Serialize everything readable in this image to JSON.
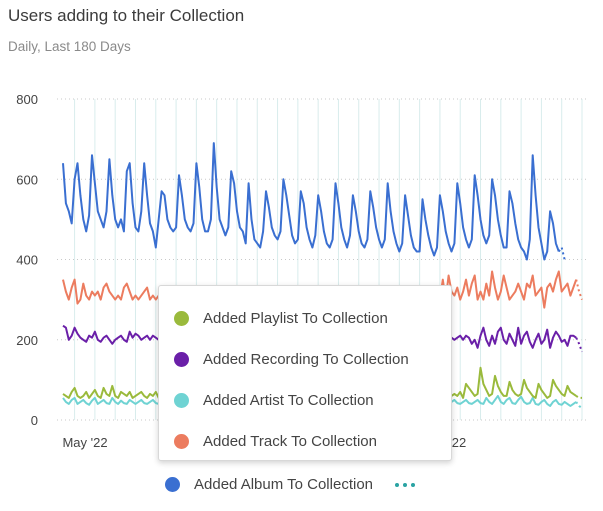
{
  "header": {
    "title": "Users adding to their Collection",
    "subtitle": "Daily, Last 180 Days"
  },
  "legend": {
    "popup_items": [
      {
        "label": "Added Playlist To Collection",
        "color": "#9aba3c"
      },
      {
        "label": "Added Recording To Collection",
        "color": "#6a1fa8"
      },
      {
        "label": "Added Artist To Collection",
        "color": "#6fd3d3"
      },
      {
        "label": "Added Track To Collection",
        "color": "#ec7c5f"
      }
    ],
    "bottom_item": {
      "label": "Added Album To Collection",
      "color": "#3a6fd1"
    },
    "more_icon": "ellipsis-icon"
  },
  "chart_data": {
    "type": "line",
    "title": "Users adding to their Collection",
    "subtitle": "Daily, Last 180 Days",
    "ylim": [
      0,
      800
    ],
    "yticks": [
      0,
      200,
      400,
      600,
      800
    ],
    "xtick_labels": [
      "May '22",
      "22"
    ],
    "x_days": 180,
    "grid": true,
    "series": [
      {
        "name": "Added Album To Collection",
        "color": "#3a6fd1",
        "values": [
          640,
          540,
          520,
          490,
          600,
          640,
          560,
          500,
          470,
          510,
          660,
          590,
          520,
          500,
          480,
          520,
          650,
          560,
          500,
          480,
          500,
          470,
          620,
          640,
          540,
          480,
          470,
          520,
          640,
          560,
          490,
          470,
          430,
          500,
          570,
          560,
          500,
          480,
          470,
          480,
          610,
          560,
          500,
          480,
          470,
          490,
          640,
          580,
          500,
          470,
          470,
          500,
          690,
          580,
          500,
          480,
          460,
          480,
          620,
          590,
          520,
          480,
          470,
          440,
          590,
          500,
          450,
          440,
          430,
          470,
          570,
          530,
          480,
          460,
          450,
          470,
          600,
          560,
          510,
          460,
          440,
          450,
          570,
          540,
          480,
          450,
          430,
          460,
          560,
          520,
          470,
          440,
          430,
          450,
          590,
          540,
          480,
          450,
          430,
          460,
          560,
          520,
          470,
          440,
          430,
          450,
          570,
          530,
          480,
          450,
          430,
          450,
          590,
          520,
          470,
          440,
          420,
          440,
          560,
          510,
          460,
          430,
          420,
          420,
          550,
          500,
          460,
          430,
          410,
          430,
          560,
          520,
          470,
          440,
          420,
          440,
          590,
          540,
          480,
          450,
          430,
          450,
          610,
          560,
          500,
          460,
          440,
          460,
          600,
          560,
          500,
          460,
          430,
          430,
          570,
          540,
          490,
          450,
          430,
          420,
          400,
          450,
          660,
          560,
          480,
          440,
          400,
          420,
          520,
          490,
          440,
          420,
          430,
          400
        ]
      },
      {
        "name": "Added Track To Collection",
        "color": "#ec7c5f",
        "values": [
          350,
          320,
          300,
          330,
          350,
          290,
          300,
          340,
          310,
          300,
          320,
          310,
          320,
          300,
          330,
          340,
          320,
          310,
          300,
          310,
          300,
          330,
          340,
          320,
          300,
          310,
          300,
          310,
          320,
          330,
          300,
          310,
          300,
          310,
          320,
          300,
          310,
          300,
          310,
          320,
          310,
          300,
          310,
          300,
          310,
          310,
          300,
          310,
          310,
          300,
          310,
          310,
          300,
          310,
          310,
          300,
          310,
          310,
          300,
          310,
          310,
          300,
          310,
          310,
          300,
          310,
          310,
          300,
          310,
          310,
          300,
          310,
          310,
          300,
          310,
          310,
          300,
          310,
          310,
          300,
          310,
          310,
          300,
          310,
          310,
          300,
          310,
          310,
          300,
          310,
          310,
          300,
          310,
          310,
          300,
          310,
          310,
          300,
          310,
          310,
          300,
          310,
          310,
          300,
          310,
          310,
          300,
          310,
          310,
          300,
          310,
          310,
          300,
          310,
          310,
          300,
          310,
          310,
          300,
          310,
          310,
          300,
          310,
          310,
          300,
          310,
          310,
          300,
          310,
          310,
          300,
          350,
          300,
          360,
          320,
          310,
          330,
          300,
          320,
          350,
          310,
          340,
          360,
          300,
          320,
          300,
          340,
          310,
          370,
          330,
          300,
          320,
          360,
          330,
          300,
          310,
          320,
          340,
          320,
          300,
          340,
          330,
          360,
          310,
          320,
          330,
          280,
          330,
          340,
          320,
          350,
          370,
          320,
          330,
          340,
          310,
          330,
          350,
          320,
          300
        ]
      },
      {
        "name": "Added Recording To Collection",
        "color": "#6a1fa8",
        "values": [
          235,
          230,
          200,
          210,
          230,
          215,
          205,
          200,
          195,
          210,
          205,
          220,
          200,
          195,
          205,
          210,
          200,
          190,
          200,
          205,
          210,
          200,
          195,
          220,
          205,
          215,
          210,
          200,
          205,
          210,
          200,
          210,
          205,
          200,
          205,
          210,
          200,
          210,
          205,
          200,
          205,
          210,
          200,
          210,
          205,
          200,
          205,
          210,
          200,
          210,
          205,
          200,
          205,
          210,
          200,
          210,
          205,
          200,
          205,
          210,
          200,
          210,
          205,
          200,
          205,
          210,
          200,
          210,
          205,
          200,
          205,
          210,
          200,
          210,
          205,
          200,
          205,
          210,
          200,
          210,
          205,
          200,
          205,
          210,
          200,
          210,
          205,
          200,
          205,
          210,
          200,
          210,
          205,
          200,
          205,
          210,
          200,
          210,
          205,
          200,
          205,
          210,
          200,
          210,
          205,
          200,
          205,
          210,
          200,
          210,
          205,
          200,
          205,
          210,
          200,
          210,
          205,
          200,
          205,
          210,
          200,
          210,
          205,
          200,
          205,
          210,
          200,
          210,
          205,
          200,
          205,
          210,
          200,
          210,
          205,
          200,
          205,
          210,
          200,
          210,
          205,
          190,
          200,
          180,
          210,
          230,
          200,
          185,
          210,
          190,
          220,
          230,
          200,
          190,
          215,
          200,
          185,
          230,
          190,
          210,
          220,
          195,
          180,
          200,
          215,
          190,
          200,
          225,
          180,
          205,
          220,
          210,
          195,
          200,
          185,
          210,
          210,
          205,
          190,
          170
        ]
      },
      {
        "name": "Added Playlist To Collection",
        "color": "#9aba3c",
        "values": [
          65,
          60,
          55,
          70,
          80,
          60,
          55,
          60,
          70,
          55,
          65,
          75,
          60,
          55,
          80,
          65,
          60,
          85,
          60,
          55,
          70,
          65,
          60,
          70,
          55,
          60,
          65,
          70,
          60,
          55,
          65,
          60,
          70,
          55,
          60,
          65,
          60,
          70,
          55,
          60,
          65,
          60,
          70,
          55,
          60,
          65,
          60,
          70,
          55,
          60,
          65,
          60,
          70,
          55,
          60,
          65,
          60,
          70,
          55,
          60,
          65,
          60,
          70,
          55,
          60,
          65,
          60,
          70,
          55,
          60,
          65,
          60,
          70,
          55,
          60,
          65,
          60,
          70,
          55,
          60,
          65,
          60,
          70,
          55,
          60,
          65,
          60,
          70,
          55,
          60,
          65,
          60,
          70,
          55,
          60,
          65,
          60,
          70,
          55,
          60,
          65,
          60,
          70,
          55,
          60,
          65,
          60,
          70,
          55,
          60,
          65,
          60,
          70,
          55,
          60,
          65,
          60,
          70,
          55,
          60,
          65,
          60,
          70,
          55,
          60,
          65,
          60,
          70,
          55,
          60,
          65,
          60,
          70,
          55,
          60,
          65,
          60,
          70,
          55,
          90,
          80,
          70,
          60,
          65,
          130,
          90,
          75,
          60,
          65,
          110,
          85,
          70,
          60,
          60,
          95,
          75,
          65,
          60,
          65,
          100,
          80,
          70,
          60,
          55,
          90,
          75,
          65,
          55,
          60,
          100,
          85,
          75,
          65,
          60,
          85,
          70,
          65,
          60,
          55,
          55
        ]
      },
      {
        "name": "Added Artist To Collection",
        "color": "#6fd3d3",
        "values": [
          55,
          45,
          40,
          50,
          55,
          40,
          45,
          50,
          42,
          38,
          48,
          55,
          40,
          45,
          50,
          42,
          40,
          55,
          45,
          40,
          48,
          42,
          40,
          50,
          45,
          40,
          45,
          50,
          42,
          40,
          45,
          50,
          42,
          40,
          45,
          50,
          42,
          40,
          45,
          50,
          42,
          40,
          45,
          50,
          42,
          40,
          45,
          50,
          42,
          40,
          45,
          50,
          42,
          40,
          45,
          50,
          42,
          40,
          45,
          50,
          42,
          40,
          45,
          50,
          42,
          40,
          45,
          50,
          42,
          40,
          45,
          50,
          42,
          40,
          45,
          50,
          42,
          40,
          45,
          50,
          42,
          40,
          45,
          50,
          42,
          40,
          45,
          50,
          42,
          40,
          45,
          50,
          42,
          40,
          45,
          50,
          42,
          40,
          45,
          50,
          42,
          40,
          45,
          50,
          42,
          40,
          45,
          50,
          42,
          40,
          45,
          50,
          42,
          40,
          45,
          50,
          42,
          40,
          45,
          50,
          42,
          40,
          45,
          50,
          42,
          40,
          45,
          50,
          42,
          40,
          45,
          50,
          42,
          40,
          45,
          50,
          42,
          40,
          45,
          50,
          42,
          40,
          45,
          50,
          42,
          40,
          55,
          45,
          40,
          50,
          60,
          45,
          40,
          50,
          55,
          42,
          40,
          50,
          58,
          45,
          40,
          42,
          55,
          40,
          38,
          45,
          50,
          40,
          35,
          45,
          50,
          40,
          38,
          45,
          40,
          35,
          40,
          45,
          35,
          30
        ]
      }
    ]
  }
}
